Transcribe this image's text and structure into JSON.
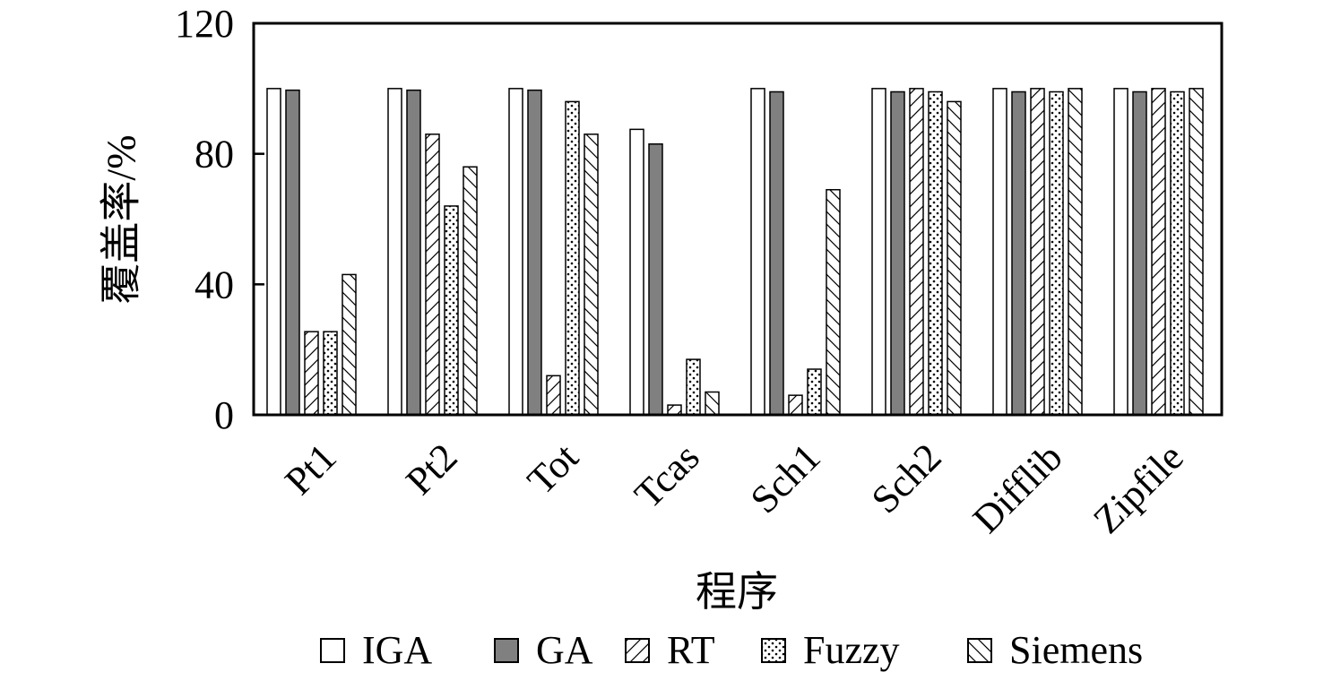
{
  "chart_data": {
    "type": "bar",
    "title": "",
    "xlabel": "程序",
    "ylabel": "覆盖率/%",
    "ylim": [
      0,
      120
    ],
    "yticks": [
      "0",
      "40",
      "80",
      "120"
    ],
    "grid": false,
    "legend_position": "bottom",
    "categories": [
      "Pt1",
      "Pt2",
      "Tot",
      "Tcas",
      "Sch1",
      "Sch2",
      "Difflib",
      "Zipfile"
    ],
    "series": [
      {
        "name": "IGA",
        "pattern": "white",
        "values": [
          100,
          100,
          100,
          87.5,
          100,
          100,
          100,
          100
        ]
      },
      {
        "name": "GA",
        "pattern": "gray",
        "color": "#808080",
        "values": [
          99.5,
          99.5,
          99.5,
          83,
          99,
          99,
          99,
          99
        ]
      },
      {
        "name": "RT",
        "pattern": "forward-hatch",
        "values": [
          25.5,
          86,
          12,
          3,
          6,
          100,
          100,
          100
        ]
      },
      {
        "name": "Fuzzy",
        "pattern": "dots",
        "values": [
          25.5,
          64,
          96,
          17,
          14,
          99,
          99,
          99
        ]
      },
      {
        "name": "Siemens",
        "pattern": "back-hatch",
        "values": [
          43,
          76,
          86,
          7,
          69,
          96,
          100,
          100
        ]
      }
    ]
  }
}
